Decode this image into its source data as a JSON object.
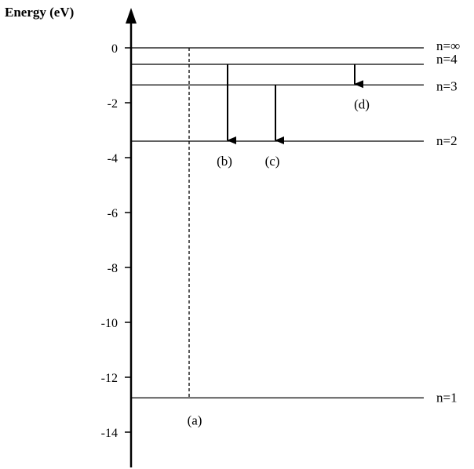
{
  "diagram": {
    "y_axis_label": "Energy (eV)",
    "ticks": [
      {
        "value": 0,
        "label": "0"
      },
      {
        "value": -2,
        "label": "-2"
      },
      {
        "value": -4,
        "label": "-4"
      },
      {
        "value": -6,
        "label": "-6"
      },
      {
        "value": -8,
        "label": "-8"
      },
      {
        "value": -10,
        "label": "-10"
      },
      {
        "value": -12,
        "label": "-12"
      },
      {
        "value": -14,
        "label": "-14"
      }
    ],
    "levels": [
      {
        "name": "n=∞",
        "energy": 0
      },
      {
        "name": "n=4",
        "energy": -0.6
      },
      {
        "name": "n=3",
        "energy": -1.35
      },
      {
        "name": "n=2",
        "energy": -3.4
      },
      {
        "name": "n=1",
        "energy": -12.75
      }
    ],
    "transitions": [
      {
        "label": "(a)",
        "from": "n=∞",
        "to": "n=1",
        "style": "dashed"
      },
      {
        "label": "(b)",
        "from": "n=4",
        "to": "n=2",
        "style": "arrow"
      },
      {
        "label": "(c)",
        "from": "n=3",
        "to": "n=2",
        "style": "arrow"
      },
      {
        "label": "(d)",
        "from": "n=4",
        "to": "n=3",
        "style": "arrow"
      }
    ]
  }
}
